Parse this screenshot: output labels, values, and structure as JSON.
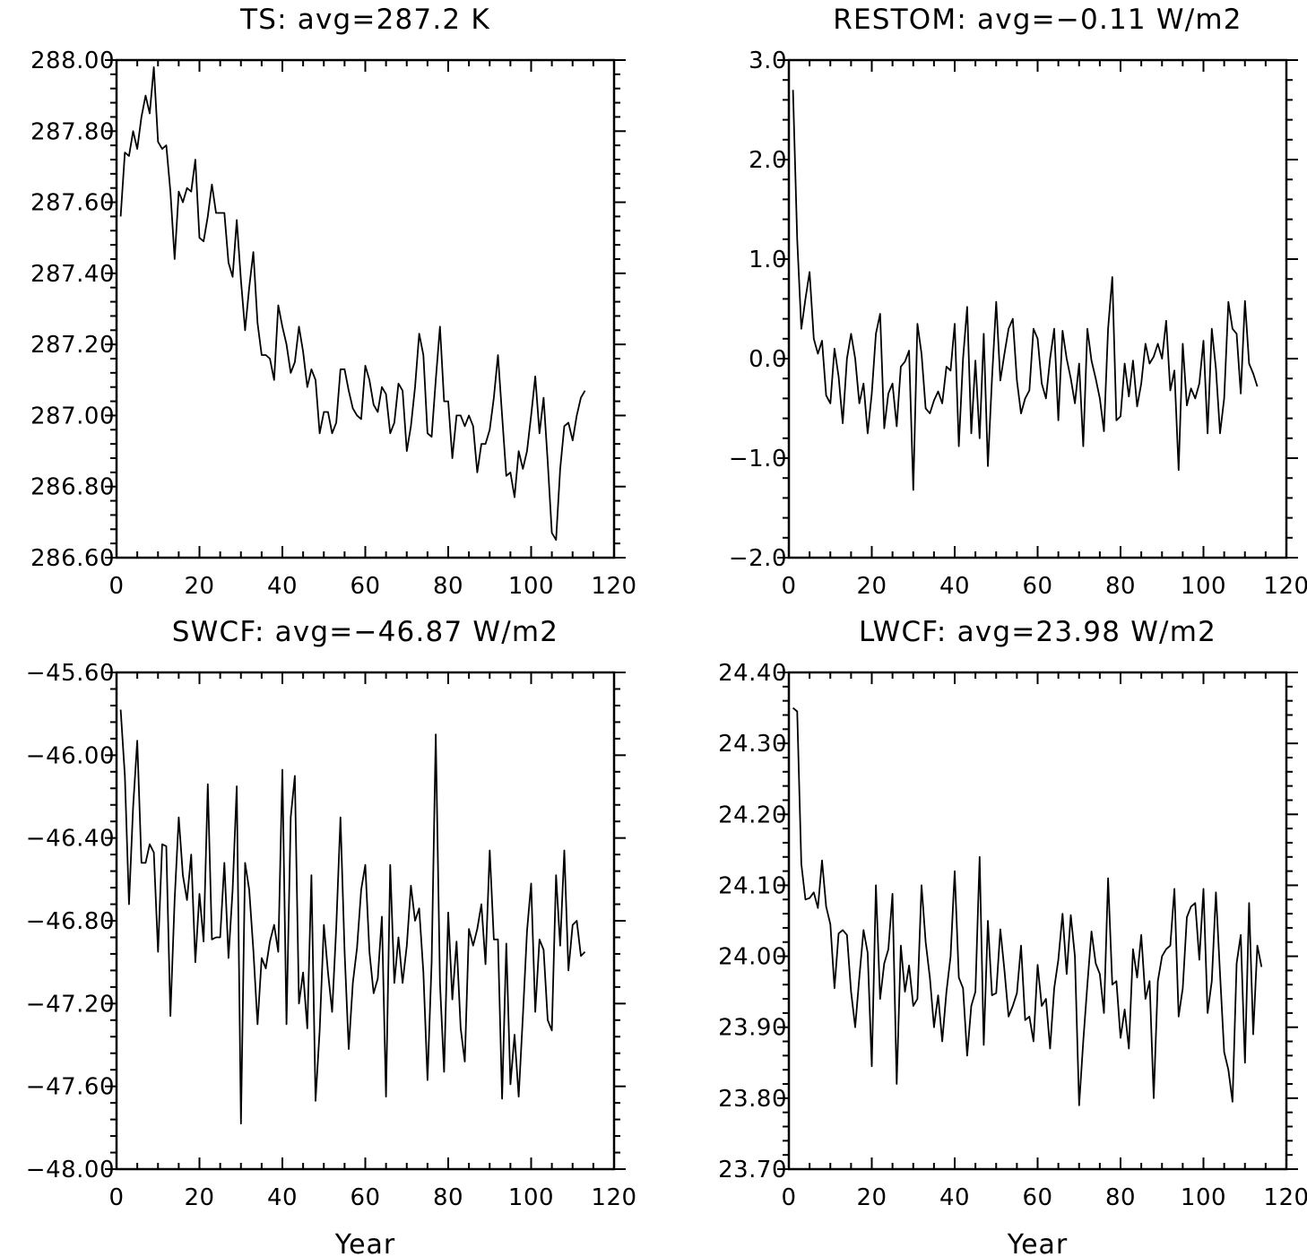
{
  "chart_data": [
    {
      "type": "line",
      "title": "TS: avg=287.2 K",
      "xlabel": "",
      "ylabel": "",
      "xlim": [
        0,
        120
      ],
      "ylim": [
        286.6,
        288.0
      ],
      "x_ticks": [
        "0",
        "20",
        "40",
        "60",
        "80",
        "100",
        "120"
      ],
      "y_ticks": [
        "286.60",
        "286.80",
        "287.00",
        "287.20",
        "287.40",
        "287.60",
        "287.80",
        "288.00"
      ],
      "grid": false,
      "x_start": 1,
      "values": [
        287.56,
        287.74,
        287.73,
        287.8,
        287.75,
        287.84,
        287.9,
        287.85,
        287.98,
        287.77,
        287.75,
        287.76,
        287.63,
        287.44,
        287.63,
        287.6,
        287.64,
        287.63,
        287.72,
        287.5,
        287.49,
        287.56,
        287.65,
        287.57,
        287.57,
        287.57,
        287.43,
        287.39,
        287.55,
        287.38,
        287.24,
        287.36,
        287.46,
        287.26,
        287.17,
        287.17,
        287.16,
        287.1,
        287.31,
        287.25,
        287.2,
        287.12,
        287.15,
        287.25,
        287.18,
        287.08,
        287.13,
        287.1,
        286.95,
        287.01,
        287.01,
        286.95,
        286.98,
        287.13,
        287.13,
        287.07,
        287.02,
        287.0,
        286.99,
        287.14,
        287.1,
        287.03,
        287.01,
        287.08,
        287.06,
        286.95,
        286.98,
        287.09,
        287.07,
        286.9,
        286.97,
        287.08,
        287.23,
        287.17,
        286.95,
        286.94,
        287.1,
        287.25,
        287.04,
        287.04,
        286.88,
        287.0,
        287.0,
        286.97,
        287.0,
        286.97,
        286.84,
        286.92,
        286.92,
        286.96,
        287.05,
        287.17,
        287.0,
        286.83,
        286.84,
        286.77,
        286.9,
        286.85,
        286.9,
        287.0,
        287.11,
        286.95,
        287.05,
        286.87,
        286.67,
        286.65,
        286.85,
        286.97,
        286.98,
        286.93,
        287.0,
        287.05,
        287.07
      ]
    },
    {
      "type": "line",
      "title": "RESTOM: avg=−0.11 W/m2",
      "xlabel": "",
      "ylabel": "",
      "xlim": [
        0,
        120
      ],
      "ylim": [
        -2.0,
        3.0
      ],
      "x_ticks": [
        "0",
        "20",
        "40",
        "60",
        "80",
        "100",
        "120"
      ],
      "y_ticks": [
        "−2.0",
        "−1.0",
        "0.0",
        "1.0",
        "2.0",
        "3.0"
      ],
      "grid": false,
      "x_start": 1,
      "values": [
        2.7,
        1.2,
        0.3,
        0.6,
        0.87,
        0.2,
        0.05,
        0.18,
        -0.37,
        -0.45,
        0.1,
        -0.18,
        -0.65,
        0.0,
        0.25,
        0.0,
        -0.45,
        -0.25,
        -0.75,
        -0.35,
        0.25,
        0.45,
        -0.7,
        -0.35,
        -0.25,
        -0.68,
        -0.08,
        -0.03,
        0.08,
        -1.32,
        0.35,
        0.05,
        -0.5,
        -0.55,
        -0.42,
        -0.33,
        -0.45,
        -0.08,
        -0.12,
        0.35,
        -0.88,
        0.0,
        0.52,
        -0.75,
        -0.02,
        -0.8,
        0.25,
        -1.08,
        -0.2,
        0.57,
        -0.22,
        0.05,
        0.3,
        0.4,
        -0.22,
        -0.55,
        -0.4,
        -0.32,
        0.3,
        0.2,
        -0.25,
        -0.4,
        0.0,
        0.3,
        -0.62,
        0.28,
        0.0,
        -0.2,
        -0.45,
        -0.05,
        -0.88,
        0.3,
        -0.02,
        -0.2,
        -0.4,
        -0.73,
        0.3,
        0.82,
        -0.62,
        -0.58,
        -0.05,
        -0.38,
        -0.02,
        -0.48,
        -0.25,
        0.15,
        -0.05,
        0.02,
        0.15,
        0.0,
        0.38,
        -0.32,
        -0.12,
        -1.12,
        0.15,
        -0.47,
        -0.3,
        -0.4,
        -0.25,
        0.18,
        -0.75,
        0.3,
        -0.1,
        -0.75,
        -0.4,
        0.57,
        0.3,
        0.25,
        -0.35,
        0.58,
        -0.05,
        -0.15,
        -0.28
      ]
    },
    {
      "type": "line",
      "title": "SWCF: avg=−46.87 W/m2",
      "xlabel": "Year",
      "ylabel": "",
      "xlim": [
        0,
        120
      ],
      "ylim": [
        -48.0,
        -45.6
      ],
      "x_ticks": [
        "0",
        "20",
        "40",
        "60",
        "80",
        "100",
        "120"
      ],
      "y_ticks": [
        "−48.00",
        "−47.60",
        "−47.20",
        "−46.80",
        "−46.40",
        "−46.00",
        "−45.60"
      ],
      "grid": false,
      "x_start": 1,
      "values": [
        -45.78,
        -46.1,
        -46.72,
        -46.25,
        -45.93,
        -46.52,
        -46.52,
        -46.43,
        -46.47,
        -46.95,
        -46.43,
        -46.44,
        -47.26,
        -46.7,
        -46.3,
        -46.58,
        -46.7,
        -46.48,
        -47.0,
        -46.67,
        -46.9,
        -46.14,
        -46.89,
        -46.88,
        -46.88,
        -46.52,
        -46.98,
        -46.65,
        -46.15,
        -47.78,
        -46.52,
        -46.65,
        -46.94,
        -47.3,
        -46.98,
        -47.03,
        -46.9,
        -46.82,
        -46.95,
        -46.07,
        -47.3,
        -46.3,
        -46.1,
        -47.2,
        -47.05,
        -47.32,
        -46.58,
        -47.67,
        -47.33,
        -46.82,
        -47.05,
        -47.24,
        -46.83,
        -46.3,
        -46.95,
        -47.42,
        -47.1,
        -46.93,
        -46.65,
        -46.53,
        -46.95,
        -47.15,
        -47.08,
        -46.78,
        -47.65,
        -46.53,
        -47.1,
        -46.88,
        -47.1,
        -46.92,
        -46.63,
        -46.8,
        -46.74,
        -47.05,
        -47.57,
        -47.0,
        -45.9,
        -47.1,
        -47.53,
        -46.76,
        -47.18,
        -46.9,
        -47.32,
        -47.48,
        -46.84,
        -46.92,
        -46.84,
        -46.72,
        -47.01,
        -46.46,
        -46.89,
        -46.89,
        -47.66,
        -46.91,
        -47.59,
        -47.35,
        -47.65,
        -47.26,
        -46.85,
        -46.62,
        -47.24,
        -46.89,
        -46.94,
        -47.28,
        -47.33,
        -46.58,
        -46.92,
        -46.46,
        -47.04,
        -46.82,
        -46.8,
        -46.97,
        -46.95
      ]
    },
    {
      "type": "line",
      "title": "LWCF: avg=23.98 W/m2",
      "xlabel": "Year",
      "ylabel": "",
      "xlim": [
        0,
        120
      ],
      "ylim": [
        23.7,
        24.4
      ],
      "x_ticks": [
        "0",
        "20",
        "40",
        "60",
        "80",
        "100",
        "120"
      ],
      "y_ticks": [
        "23.70",
        "23.80",
        "23.90",
        "24.00",
        "24.10",
        "24.20",
        "24.30",
        "24.40"
      ],
      "grid": false,
      "x_start": 1,
      "values": [
        24.35,
        24.345,
        24.13,
        24.08,
        24.082,
        24.09,
        24.068,
        24.135,
        24.07,
        24.045,
        23.955,
        24.032,
        24.037,
        24.03,
        23.95,
        23.9,
        23.97,
        24.037,
        24.005,
        23.845,
        24.1,
        23.94,
        23.99,
        24.01,
        24.088,
        23.82,
        24.015,
        23.95,
        23.987,
        23.93,
        23.94,
        24.1,
        24.02,
        23.97,
        23.9,
        23.945,
        23.88,
        23.95,
        24.0,
        24.12,
        23.97,
        23.955,
        23.86,
        23.93,
        23.95,
        24.14,
        23.875,
        24.05,
        23.945,
        23.948,
        24.038,
        23.98,
        23.915,
        23.93,
        23.948,
        24.015,
        23.91,
        23.915,
        23.88,
        23.988,
        23.93,
        23.94,
        23.87,
        23.955,
        23.995,
        24.06,
        23.975,
        24.058,
        24.0,
        23.79,
        23.88,
        23.96,
        24.035,
        23.99,
        23.975,
        23.92,
        24.11,
        23.96,
        23.965,
        23.885,
        23.925,
        23.87,
        24.01,
        23.97,
        24.03,
        23.94,
        23.965,
        23.8,
        23.965,
        24.0,
        24.01,
        24.015,
        24.095,
        23.915,
        23.955,
        24.055,
        24.07,
        24.075,
        23.995,
        24.095,
        23.92,
        23.965,
        24.09,
        23.975,
        23.865,
        23.84,
        23.795,
        23.99,
        24.03,
        23.85,
        24.075,
        23.89,
        24.015,
        23.985
      ]
    }
  ]
}
